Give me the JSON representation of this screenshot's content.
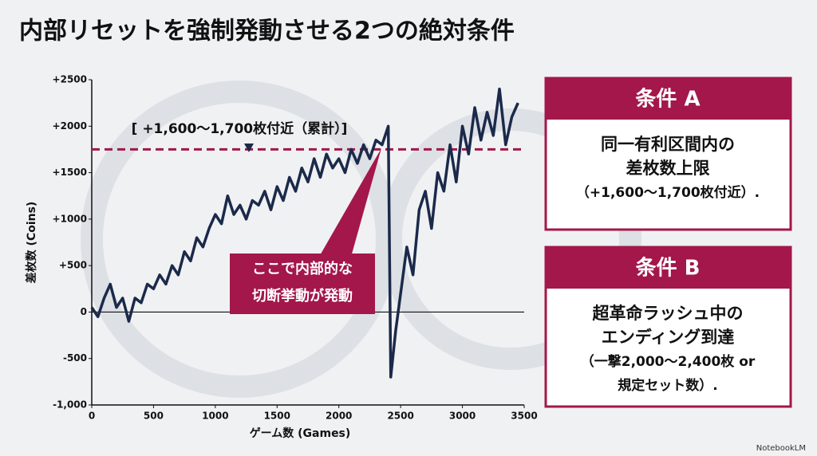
{
  "title": "内部リセットを強制発動させる2つの絶対条件",
  "chart_data": {
    "type": "line",
    "x": [
      0,
      50,
      100,
      150,
      200,
      250,
      300,
      350,
      400,
      450,
      500,
      550,
      600,
      650,
      700,
      750,
      800,
      850,
      900,
      950,
      1000,
      1050,
      1100,
      1150,
      1200,
      1250,
      1300,
      1350,
      1400,
      1450,
      1500,
      1550,
      1600,
      1650,
      1700,
      1750,
      1800,
      1850,
      1900,
      1950,
      2000,
      2050,
      2100,
      2150,
      2200,
      2250,
      2300,
      2350,
      2400,
      2420,
      2460,
      2500,
      2550,
      2600,
      2650,
      2700,
      2750,
      2800,
      2850,
      2900,
      2950,
      3000,
      3050,
      3100,
      3150,
      3200,
      3250,
      3300,
      3350,
      3400,
      3450
    ],
    "values": [
      50,
      -50,
      150,
      300,
      50,
      150,
      -100,
      150,
      100,
      300,
      250,
      400,
      300,
      500,
      400,
      650,
      550,
      800,
      700,
      900,
      1050,
      950,
      1250,
      1050,
      1150,
      1000,
      1200,
      1150,
      1300,
      1100,
      1350,
      1200,
      1450,
      1300,
      1550,
      1400,
      1650,
      1450,
      1700,
      1550,
      1650,
      1500,
      1750,
      1600,
      1800,
      1650,
      1850,
      1800,
      2000,
      -700,
      -200,
      200,
      700,
      400,
      1100,
      1300,
      900,
      1500,
      1300,
      1800,
      1400,
      2000,
      1700,
      2200,
      1850,
      2150,
      1900,
      2400,
      1800,
      2100,
      2250
    ],
    "color": "#1b2a4a",
    "xlim": [
      0,
      3500
    ],
    "xticks": [
      0,
      500,
      1000,
      1500,
      2000,
      2500,
      3000,
      3500
    ],
    "ylim": [
      -1000,
      2500
    ],
    "yticks": [
      {
        "value": -1000,
        "label": "-1,000"
      },
      -500,
      0,
      {
        "value": 500,
        "label": "+500"
      },
      {
        "value": 1000,
        "label": "+1000"
      },
      {
        "value": 1500,
        "label": "+1500"
      },
      {
        "value": 2000,
        "label": "+2000"
      },
      {
        "value": 2500,
        "label": "+2500"
      }
    ],
    "xlabel": "ゲーム数 (Games)",
    "ylabel": "差枚数 (Coins)",
    "reference_value": 1750,
    "reference_color": "#a3174a",
    "reference_label": "[ +1,600〜1,700枚付近（累計）]",
    "callout": [
      "ここで内部的な",
      "切断挙動が発動"
    ]
  },
  "panels": [
    {
      "title": "条件 A",
      "lines": [
        "同一有利区間内の",
        "差枚数上限",
        "（+1,600〜1,700枚付近）."
      ]
    },
    {
      "title": "条件 B",
      "lines": [
        "超革命ラッシュ中の",
        "エンディング到達",
        "（一撃2,000〜2,400枚 or",
        "規定セット数）."
      ]
    }
  ],
  "footer": "NotebookLM"
}
